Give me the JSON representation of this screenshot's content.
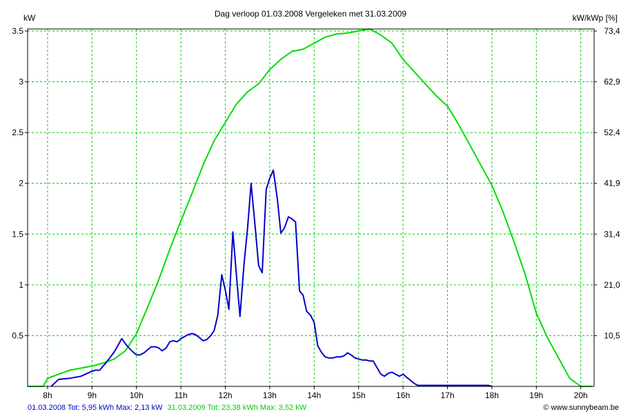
{
  "chart_data": {
    "type": "line",
    "title": "Dag  verloop 01.03.2008   Vergeleken met 31.03.2009",
    "ylabel_left": "kW",
    "ylabel_right": "kW/kWp [%]",
    "xlim": [
      7.55,
      20.3
    ],
    "ylim": [
      0,
      3.52
    ],
    "grid": true,
    "x_ticks": [
      8,
      9,
      10,
      11,
      12,
      13,
      14,
      15,
      16,
      17,
      18,
      19,
      20
    ],
    "x_tick_labels": [
      "8h",
      "9h",
      "10h",
      "11h",
      "12h",
      "13h",
      "14h",
      "15h",
      "16h",
      "17h",
      "18h",
      "19h",
      "20h"
    ],
    "y_ticks": [
      0.5,
      1,
      1.5,
      2,
      2.5,
      3,
      3.5
    ],
    "y_tick_labels": [
      "0.5",
      "1",
      "1.5",
      "2",
      "2.5",
      "3",
      "3.5"
    ],
    "y_right_tick_labels": [
      "10,5",
      "21,0",
      "31,4",
      "41,9",
      "52,4",
      "62,9",
      "73,4"
    ],
    "series": [
      {
        "date": "01.03.2008",
        "color": "#0000cc",
        "x": [
          8.08,
          8.25,
          8.5,
          8.75,
          9.0,
          9.08,
          9.17,
          9.33,
          9.5,
          9.67,
          9.75,
          9.83,
          9.92,
          10.0,
          10.08,
          10.17,
          10.25,
          10.33,
          10.42,
          10.5,
          10.58,
          10.67,
          10.75,
          10.83,
          10.92,
          11.0,
          11.08,
          11.17,
          11.25,
          11.33,
          11.42,
          11.5,
          11.58,
          11.67,
          11.75,
          11.83,
          11.92,
          12.0,
          12.08,
          12.17,
          12.25,
          12.33,
          12.42,
          12.5,
          12.58,
          12.67,
          12.75,
          12.83,
          12.92,
          13.0,
          13.08,
          13.17,
          13.25,
          13.33,
          13.42,
          13.5,
          13.58,
          13.67,
          13.75,
          13.83,
          13.92,
          14.0,
          14.08,
          14.17,
          14.25,
          14.33,
          14.42,
          14.5,
          14.58,
          14.67,
          14.75,
          14.83,
          14.92,
          15.0,
          15.08,
          15.17,
          15.25,
          15.33,
          15.42,
          15.5,
          15.58,
          15.67,
          15.75,
          15.83,
          15.92,
          16.0,
          16.08,
          16.17,
          16.25,
          16.33,
          16.42,
          16.5,
          16.58,
          16.67,
          16.75,
          16.83,
          16.92,
          17.0,
          17.08,
          17.17,
          17.25,
          17.33,
          17.42,
          17.5,
          17.58,
          17.67,
          17.75,
          17.83,
          17.92,
          18.0
        ],
        "y": [
          0.0,
          0.07,
          0.08,
          0.1,
          0.15,
          0.16,
          0.16,
          0.24,
          0.34,
          0.47,
          0.42,
          0.38,
          0.34,
          0.31,
          0.31,
          0.33,
          0.36,
          0.39,
          0.39,
          0.38,
          0.35,
          0.38,
          0.44,
          0.45,
          0.44,
          0.47,
          0.49,
          0.51,
          0.52,
          0.51,
          0.48,
          0.45,
          0.46,
          0.5,
          0.55,
          0.7,
          1.1,
          0.95,
          0.76,
          1.52,
          1.1,
          0.69,
          1.2,
          1.55,
          2.0,
          1.58,
          1.19,
          1.12,
          1.94,
          2.05,
          2.13,
          1.85,
          1.51,
          1.56,
          1.67,
          1.65,
          1.62,
          0.94,
          0.9,
          0.74,
          0.7,
          0.63,
          0.4,
          0.33,
          0.29,
          0.28,
          0.28,
          0.29,
          0.29,
          0.3,
          0.33,
          0.31,
          0.28,
          0.27,
          0.26,
          0.26,
          0.25,
          0.25,
          0.18,
          0.12,
          0.1,
          0.13,
          0.14,
          0.12,
          0.1,
          0.12,
          0.09,
          0.06,
          0.03,
          0.01,
          0.01,
          0.01,
          0.01,
          0.01,
          0.01,
          0.01,
          0.01,
          0.01,
          0.01,
          0.01,
          0.01,
          0.01,
          0.01,
          0.01,
          0.01,
          0.01,
          0.01,
          0.01,
          0.01,
          0.0
        ]
      },
      {
        "date": "31.03.2009",
        "color": "#00dd00",
        "x": [
          7.5,
          7.9,
          8.0,
          8.25,
          8.5,
          8.75,
          9.0,
          9.25,
          9.5,
          9.75,
          10.0,
          10.25,
          10.5,
          10.75,
          11.0,
          11.25,
          11.5,
          11.75,
          12.0,
          12.25,
          12.5,
          12.75,
          13.0,
          13.25,
          13.5,
          13.75,
          14.0,
          14.25,
          14.5,
          14.75,
          15.0,
          15.25,
          15.5,
          15.75,
          16.0,
          16.25,
          16.5,
          16.75,
          17.0,
          17.25,
          17.5,
          17.75,
          18.0,
          18.25,
          18.5,
          18.75,
          19.0,
          19.25,
          19.5,
          19.75,
          20.0,
          20.25
        ],
        "y": [
          0.0,
          0.0,
          0.08,
          0.12,
          0.16,
          0.18,
          0.2,
          0.23,
          0.27,
          0.35,
          0.52,
          0.78,
          1.05,
          1.35,
          1.63,
          1.9,
          2.18,
          2.42,
          2.6,
          2.78,
          2.9,
          2.98,
          3.12,
          3.22,
          3.3,
          3.32,
          3.38,
          3.44,
          3.47,
          3.48,
          3.5,
          3.52,
          3.46,
          3.38,
          3.22,
          3.1,
          2.98,
          2.86,
          2.76,
          2.58,
          2.38,
          2.18,
          1.98,
          1.72,
          1.42,
          1.1,
          0.72,
          0.48,
          0.28,
          0.08,
          0.0,
          0.0
        ]
      }
    ]
  },
  "legend": {
    "series1": "01.03.2008 Tot: 5,95 kWh Max: 2,13 kW",
    "series2": "31.03.2009 Tot: 23,38 kWh Max: 3,52 kW"
  },
  "copyright": "© www.sunnybeam.be"
}
